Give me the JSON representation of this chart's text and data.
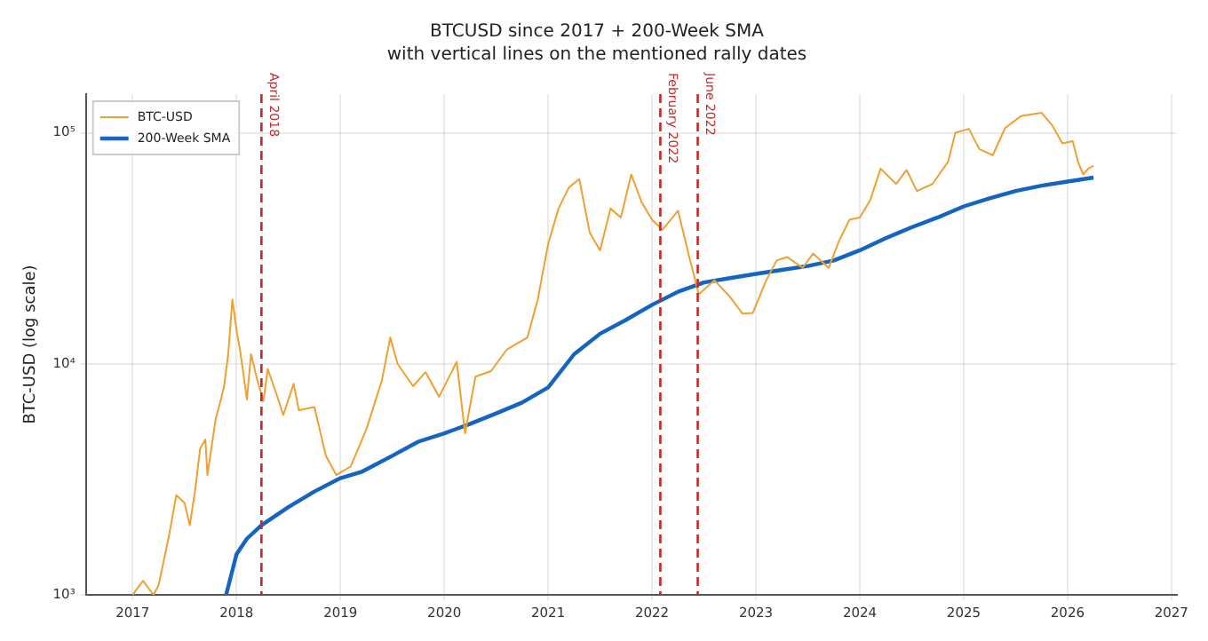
{
  "chart_data": {
    "type": "line",
    "title": "BTCUSD since 2017 + 200-Week SMA",
    "subtitle": "with vertical lines on the mentioned rally dates",
    "ylabel": "BTC-USD (log scale)",
    "log": "y",
    "grid": true,
    "legend": "top left",
    "marker": "none",
    "xlim": [
      2016.55,
      2027.05
    ],
    "xticks": [
      2017,
      2018,
      2019,
      2020,
      2021,
      2022,
      2023,
      2024,
      2025,
      2026,
      2027
    ],
    "ylim": [
      1000,
      147000
    ],
    "yticks": [
      {
        "value": 1000,
        "label": "10³"
      },
      {
        "value": 10000,
        "label": "10⁴"
      },
      {
        "value": 100000,
        "label": "10⁵"
      }
    ],
    "series": [
      {
        "name": "BTC-USD",
        "color": "#f0a030",
        "line_style": "solid",
        "x": [
          2017.0,
          2017.1,
          2017.2,
          2017.25,
          2017.35,
          2017.42,
          2017.5,
          2017.55,
          2017.6,
          2017.65,
          2017.7,
          2017.72,
          2017.8,
          2017.85,
          2017.88,
          2017.92,
          2017.96,
          2018.0,
          2018.04,
          2018.1,
          2018.14,
          2018.2,
          2018.26,
          2018.3,
          2018.38,
          2018.45,
          2018.55,
          2018.6,
          2018.75,
          2018.86,
          2018.96,
          2019.1,
          2019.25,
          2019.4,
          2019.48,
          2019.55,
          2019.7,
          2019.82,
          2019.95,
          2020.12,
          2020.2,
          2020.3,
          2020.45,
          2020.6,
          2020.8,
          2020.9,
          2021.0,
          2021.1,
          2021.2,
          2021.3,
          2021.4,
          2021.5,
          2021.6,
          2021.7,
          2021.8,
          2021.9,
          2022.0,
          2022.1,
          2022.25,
          2022.35,
          2022.45,
          2022.6,
          2022.75,
          2022.87,
          2022.97,
          2023.1,
          2023.2,
          2023.3,
          2023.45,
          2023.55,
          2023.7,
          2023.8,
          2023.9,
          2024.0,
          2024.1,
          2024.2,
          2024.35,
          2024.45,
          2024.55,
          2024.7,
          2024.85,
          2024.92,
          2025.05,
          2025.15,
          2025.28,
          2025.4,
          2025.55,
          2025.75,
          2025.85,
          2025.95,
          2026.05,
          2026.1,
          2026.15,
          2026.2,
          2026.25
        ],
        "values": [
          1000,
          1150,
          1000,
          1100,
          1800,
          2700,
          2500,
          2000,
          2800,
          4300,
          4700,
          3300,
          5800,
          7000,
          8000,
          11000,
          19000,
          14000,
          11000,
          7000,
          11000,
          8500,
          6900,
          9500,
          7500,
          6000,
          8200,
          6300,
          6500,
          4000,
          3300,
          3600,
          5200,
          8500,
          13000,
          10000,
          8000,
          9200,
          7200,
          10200,
          5000,
          8800,
          9300,
          11500,
          13000,
          19000,
          33000,
          47000,
          58000,
          63000,
          37000,
          31000,
          47000,
          43000,
          66000,
          50000,
          42000,
          38000,
          46000,
          30000,
          20000,
          23000,
          19500,
          16500,
          16600,
          23000,
          28000,
          29000,
          26000,
          30000,
          26000,
          34000,
          42000,
          43000,
          51000,
          70000,
          60000,
          69000,
          56000,
          60000,
          75000,
          100000,
          104000,
          85000,
          80000,
          105000,
          118000,
          122000,
          108000,
          90000,
          92000,
          75000,
          66000,
          70000,
          72000
        ]
      },
      {
        "name": "200-Week SMA",
        "color": "#1565c0",
        "line_style": "solid",
        "x": [
          2017.9,
          2018.0,
          2018.1,
          2018.24,
          2018.5,
          2018.75,
          2019.0,
          2019.2,
          2019.5,
          2019.75,
          2020.0,
          2020.25,
          2020.5,
          2020.75,
          2021.0,
          2021.25,
          2021.5,
          2021.75,
          2022.0,
          2022.25,
          2022.5,
          2022.75,
          2023.0,
          2023.25,
          2023.5,
          2023.75,
          2024.0,
          2024.25,
          2024.5,
          2024.75,
          2025.0,
          2025.25,
          2025.5,
          2025.75,
          2026.0,
          2026.25
        ],
        "values": [
          1000,
          1500,
          1750,
          2000,
          2400,
          2800,
          3200,
          3400,
          4000,
          4600,
          5000,
          5500,
          6100,
          6800,
          7900,
          11000,
          13500,
          15500,
          18000,
          20500,
          22500,
          23500,
          24500,
          25500,
          26500,
          28000,
          31000,
          35000,
          39000,
          43000,
          48000,
          52000,
          56000,
          59000,
          61500,
          64000
        ]
      }
    ],
    "ref_lines": [
      {
        "axis": "x",
        "value": 2018.24,
        "label": "April 2018",
        "color": "#c62828",
        "line_style": "dashed"
      },
      {
        "axis": "x",
        "value": 2022.08,
        "label": "February 2022",
        "color": "#c62828",
        "line_style": "dashed"
      },
      {
        "axis": "x",
        "value": 2022.44,
        "label": "June 2022",
        "color": "#c62828",
        "line_style": "dashed"
      }
    ]
  }
}
